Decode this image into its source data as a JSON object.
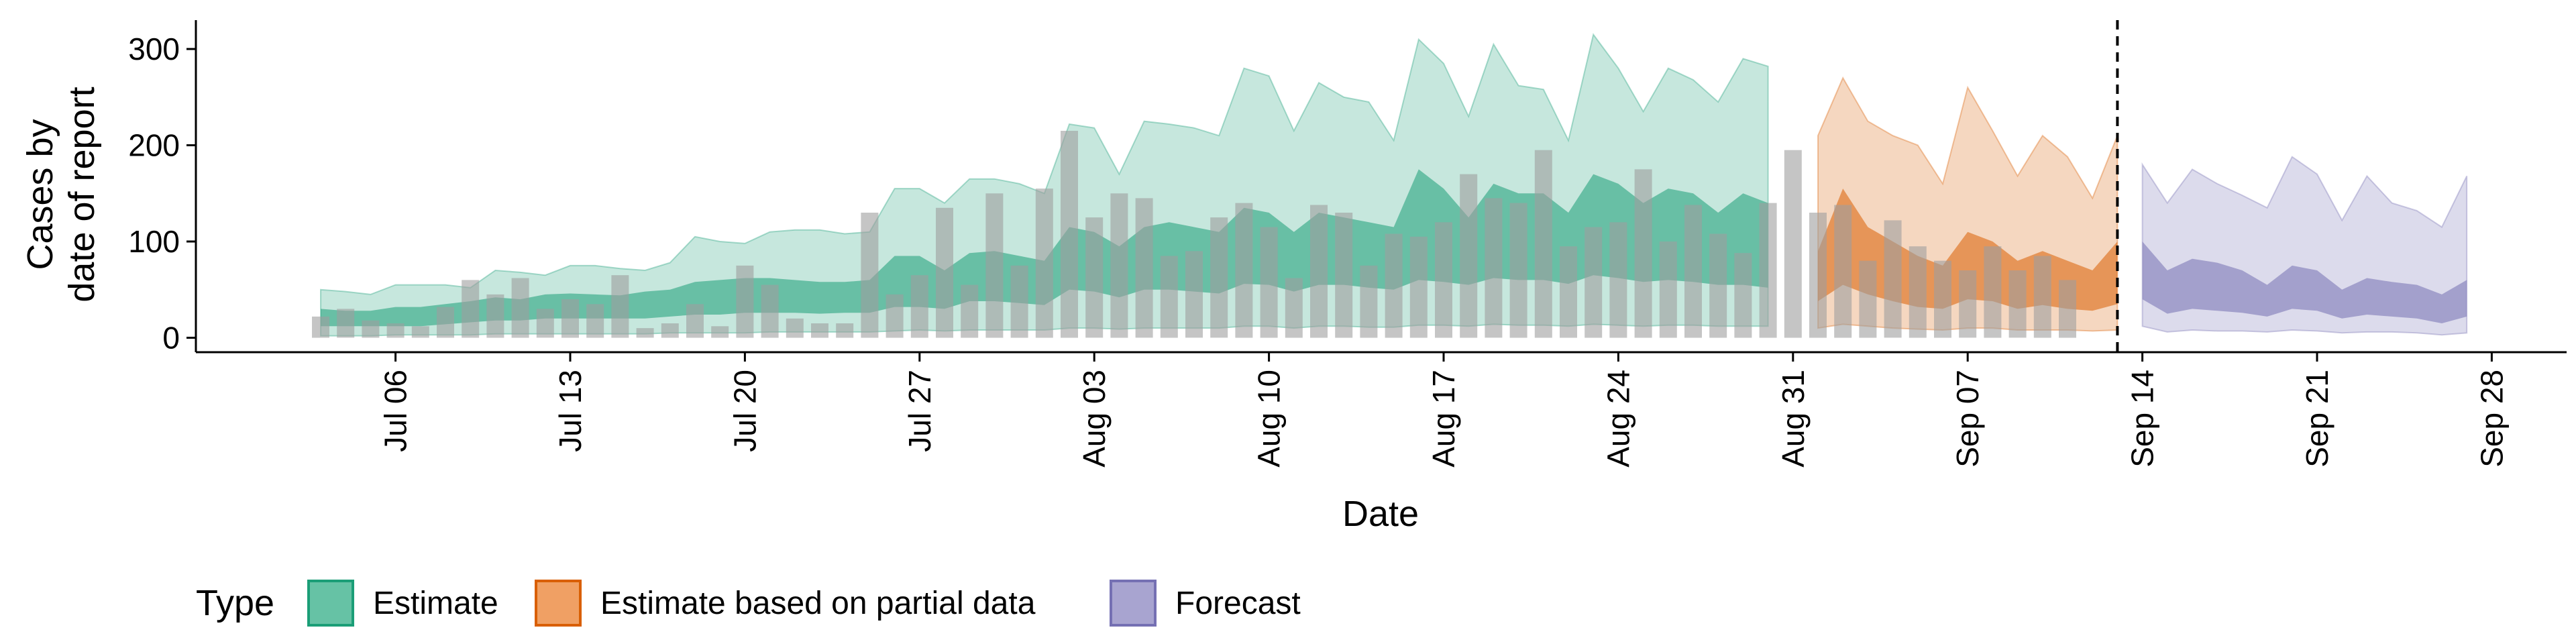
{
  "chart_data": {
    "type": "area",
    "title": "",
    "xlabel": "Date",
    "ylabel": [
      "Cases by",
      "date of report"
    ],
    "x_start": "2020-07-03",
    "x_end": "2020-09-26",
    "xlim": [
      "2020-06-28",
      "2020-10-01"
    ],
    "ylim": [
      -15,
      330
    ],
    "y_ticks": [
      0,
      100,
      200,
      300
    ],
    "x_ticks": [
      {
        "date": "2020-07-06",
        "label": "Jul 06"
      },
      {
        "date": "2020-07-13",
        "label": "Jul 13"
      },
      {
        "date": "2020-07-20",
        "label": "Jul 20"
      },
      {
        "date": "2020-07-27",
        "label": "Jul 27"
      },
      {
        "date": "2020-08-03",
        "label": "Aug 03"
      },
      {
        "date": "2020-08-10",
        "label": "Aug 10"
      },
      {
        "date": "2020-08-17",
        "label": "Aug 17"
      },
      {
        "date": "2020-08-24",
        "label": "Aug 24"
      },
      {
        "date": "2020-08-31",
        "label": "Aug 31"
      },
      {
        "date": "2020-09-07",
        "label": "Sep 07"
      },
      {
        "date": "2020-09-14",
        "label": "Sep 14"
      },
      {
        "date": "2020-09-21",
        "label": "Sep 21"
      },
      {
        "date": "2020-09-28",
        "label": "Sep 28"
      }
    ],
    "vline_date": "2020-09-13",
    "grid": false,
    "legend": {
      "title": "Type",
      "position": "bottom-left",
      "items": [
        {
          "label": "Estimate",
          "fill": "#66c2a5",
          "stroke": "#1b9e77"
        },
        {
          "label": "Estimate based on partial data",
          "fill": "#f0a064",
          "stroke": "#d95f02"
        },
        {
          "label": "Forecast",
          "fill": "#a8a4d0",
          "stroke": "#7570b3"
        }
      ]
    },
    "colors": {
      "estimate": "#1b9e77",
      "partial": "#d95f02",
      "forecast": "#7570b3",
      "bars": "#9e9e9e"
    },
    "reported_cases": [
      22,
      30,
      18,
      15,
      12,
      32,
      60,
      45,
      62,
      30,
      40,
      35,
      65,
      10,
      15,
      35,
      12,
      75,
      55,
      20,
      15,
      15,
      130,
      45,
      65,
      135,
      55,
      150,
      75,
      155,
      215,
      125,
      150,
      145,
      85,
      90,
      125,
      140,
      115,
      62,
      138,
      130,
      75,
      108,
      105,
      120,
      170,
      145,
      140,
      195,
      95,
      115,
      120,
      175,
      100,
      138,
      108,
      88,
      140,
      195,
      130,
      138,
      80,
      122,
      95,
      80,
      70,
      95,
      70,
      85,
      60
    ],
    "series": [
      {
        "name": "Estimate",
        "start_date": "2020-07-03",
        "upper90": [
          50,
          48,
          45,
          55,
          55,
          55,
          52,
          70,
          68,
          65,
          75,
          75,
          72,
          70,
          78,
          105,
          100,
          98,
          110,
          112,
          112,
          108,
          110,
          155,
          155,
          140,
          165,
          165,
          160,
          150,
          222,
          218,
          170,
          225,
          222,
          218,
          210,
          280,
          272,
          215,
          265,
          250,
          245,
          205,
          310,
          285,
          230,
          305,
          262,
          258,
          205,
          315,
          280,
          235,
          280,
          268,
          245,
          290,
          282
        ],
        "upper50": [
          30,
          28,
          28,
          32,
          32,
          35,
          38,
          42,
          40,
          45,
          46,
          45,
          44,
          48,
          50,
          58,
          60,
          62,
          62,
          60,
          58,
          58,
          60,
          85,
          85,
          70,
          88,
          90,
          85,
          80,
          115,
          110,
          95,
          115,
          120,
          115,
          110,
          135,
          130,
          110,
          130,
          125,
          120,
          115,
          175,
          155,
          125,
          160,
          150,
          150,
          130,
          170,
          160,
          140,
          155,
          150,
          130,
          150,
          140
        ],
        "lower50": [
          12,
          12,
          12,
          12,
          12,
          14,
          16,
          18,
          18,
          20,
          20,
          20,
          20,
          20,
          22,
          24,
          24,
          26,
          26,
          26,
          25,
          26,
          26,
          32,
          32,
          30,
          38,
          38,
          36,
          34,
          50,
          48,
          42,
          50,
          50,
          48,
          46,
          56,
          55,
          48,
          55,
          55,
          52,
          50,
          60,
          58,
          55,
          62,
          60,
          60,
          56,
          65,
          62,
          58,
          60,
          58,
          55,
          55,
          52
        ],
        "lower90": [
          2,
          2,
          2,
          3,
          3,
          3,
          3,
          4,
          4,
          4,
          4,
          4,
          4,
          4,
          5,
          5,
          5,
          5,
          6,
          6,
          6,
          6,
          6,
          7,
          8,
          7,
          8,
          8,
          8,
          8,
          10,
          10,
          9,
          10,
          10,
          10,
          10,
          12,
          12,
          10,
          12,
          12,
          11,
          11,
          13,
          13,
          12,
          14,
          13,
          13,
          12,
          14,
          13,
          12,
          13,
          13,
          12,
          12,
          12
        ]
      },
      {
        "name": "Estimate based on partial data",
        "start_date": "2020-09-01",
        "upper90": [
          210,
          270,
          225,
          210,
          200,
          160,
          260,
          215,
          168,
          210,
          188,
          145,
          210
        ],
        "upper50": [
          90,
          155,
          115,
          100,
          85,
          75,
          110,
          100,
          80,
          90,
          80,
          70,
          100
        ],
        "lower50": [
          38,
          55,
          45,
          38,
          32,
          30,
          40,
          38,
          30,
          34,
          30,
          28,
          35
        ],
        "lower90": [
          10,
          14,
          12,
          10,
          9,
          8,
          10,
          10,
          8,
          8,
          8,
          7,
          8
        ]
      },
      {
        "name": "Forecast",
        "start_date": "2020-09-14",
        "upper90": [
          180,
          140,
          175,
          160,
          148,
          135,
          188,
          170,
          122,
          168,
          140,
          132,
          115,
          168
        ],
        "upper50": [
          100,
          70,
          82,
          78,
          70,
          55,
          75,
          70,
          50,
          62,
          58,
          55,
          45,
          60
        ],
        "lower50": [
          40,
          25,
          30,
          28,
          26,
          22,
          30,
          28,
          20,
          24,
          22,
          20,
          15,
          22
        ],
        "lower90": [
          12,
          6,
          8,
          7,
          7,
          6,
          8,
          7,
          5,
          6,
          6,
          5,
          3,
          5
        ]
      }
    ]
  }
}
